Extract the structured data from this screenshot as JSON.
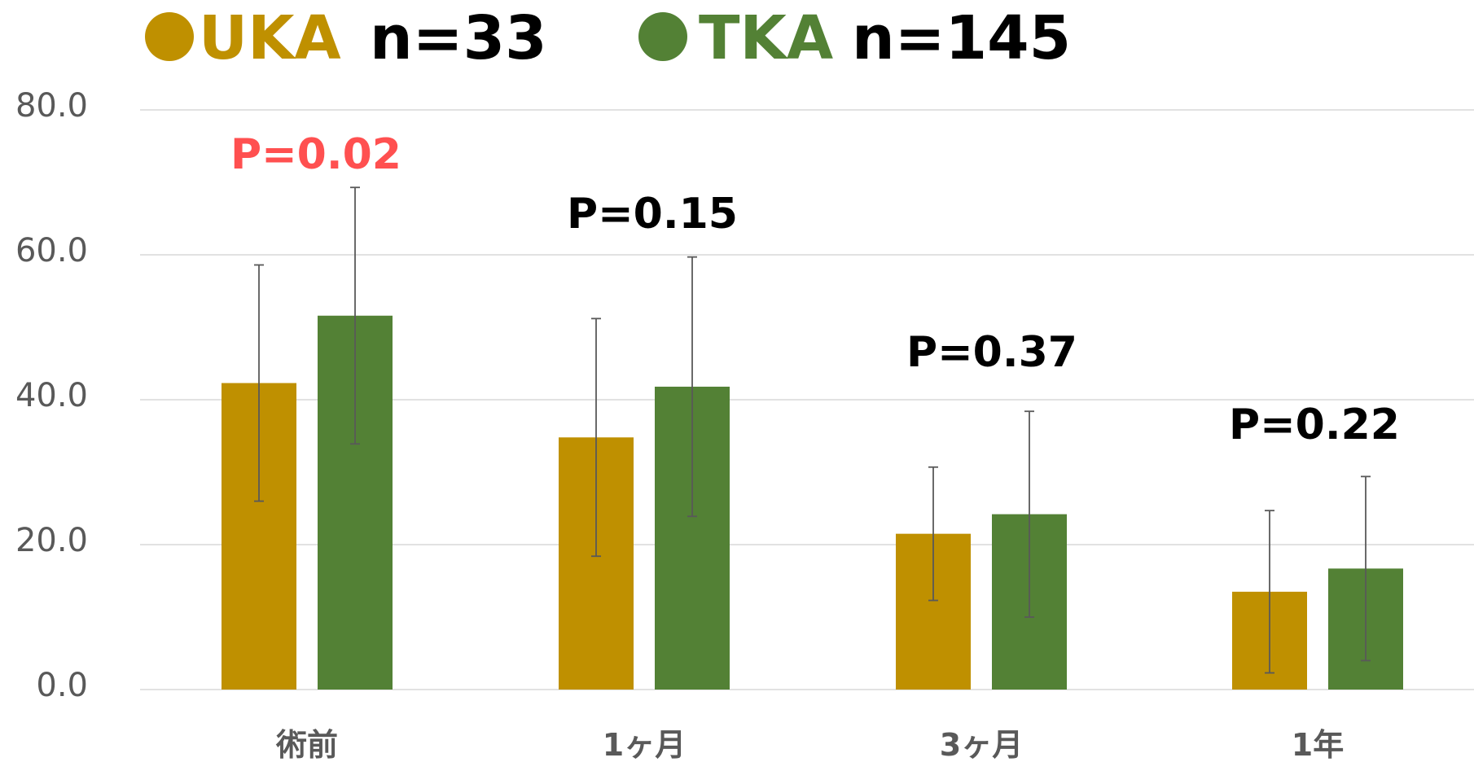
{
  "chart_data": {
    "type": "bar",
    "title": "",
    "xlabel": "",
    "ylabel": "",
    "categories": [
      "術前",
      "1ヶ月",
      "3ヶ月",
      "1年"
    ],
    "ylim": [
      0,
      80
    ],
    "yticks": [
      "0.0",
      "20.0",
      "40.0",
      "60.0",
      "80.0"
    ],
    "grid": true,
    "legend_position": "top",
    "series": [
      {
        "name": "UKA",
        "n_label": "n=33",
        "marker": "●",
        "color": "#BF9000",
        "values": [
          42.3,
          34.8,
          21.5,
          13.5
        ],
        "error": [
          16.3,
          16.4,
          9.2,
          11.2
        ]
      },
      {
        "name": "TKA",
        "n_label": "n=145",
        "marker": "●",
        "color": "#538135",
        "values": [
          51.6,
          41.8,
          24.2,
          16.7
        ],
        "error": [
          17.7,
          17.9,
          14.2,
          12.7
        ]
      }
    ],
    "annotations": [
      {
        "text": "P=0.02",
        "color": "#FF5050"
      },
      {
        "text": "P=0.15",
        "color": "#000000"
      },
      {
        "text": "P=0.37",
        "color": "#000000"
      },
      {
        "text": "P=0.22",
        "color": "#000000"
      }
    ]
  }
}
